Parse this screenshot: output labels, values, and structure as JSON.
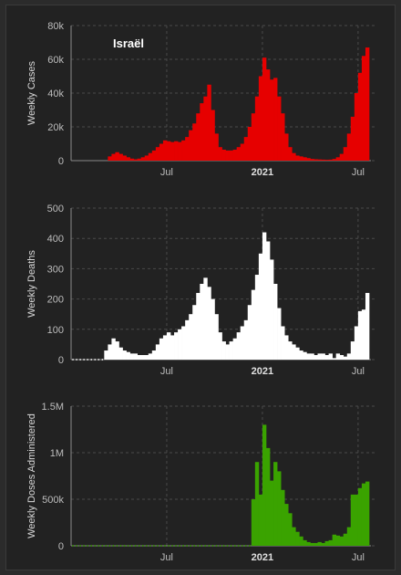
{
  "chart_data": [
    {
      "type": "bar",
      "title": "Israël",
      "ylabel": "Weekly Cases",
      "color": "#e60000",
      "ylim": [
        0,
        80000
      ],
      "yticks": [
        0,
        20000,
        40000,
        60000,
        80000
      ],
      "ytick_labels": [
        "0",
        "20k",
        "40k",
        "60k",
        "80k"
      ],
      "xticks": [
        {
          "week": 26,
          "label": "Jul",
          "bold": false
        },
        {
          "week": 52,
          "label": "2021",
          "bold": true
        },
        {
          "week": 78,
          "label": "Jul",
          "bold": false
        }
      ],
      "values": [
        0,
        0,
        0,
        0,
        0,
        0,
        0,
        0,
        0,
        0,
        2500,
        4000,
        5000,
        4000,
        3000,
        2000,
        1200,
        800,
        1200,
        2000,
        3000,
        4500,
        6000,
        8000,
        10000,
        12000,
        11500,
        11000,
        11500,
        11000,
        12000,
        14000,
        18000,
        22000,
        28000,
        34000,
        38000,
        45000,
        30000,
        16000,
        8000,
        6500,
        6000,
        6000,
        6500,
        8000,
        10000,
        14000,
        20000,
        28000,
        38000,
        50000,
        61000,
        54000,
        48000,
        49000,
        38000,
        28000,
        16000,
        8000,
        4500,
        3000,
        2500,
        2000,
        1500,
        1000,
        800,
        700,
        600,
        500,
        600,
        1000,
        2000,
        4000,
        8000,
        16000,
        26000,
        40000,
        52000,
        62000,
        67000
      ]
    },
    {
      "type": "bar",
      "ylabel": "Weekly Deaths",
      "color": "#ffffff",
      "ylim": [
        0,
        500
      ],
      "yticks": [
        0,
        100,
        200,
        300,
        400,
        500
      ],
      "ytick_labels": [
        "0",
        "100",
        "200",
        "300",
        "400",
        "500"
      ],
      "xticks": [
        {
          "week": 26,
          "label": "Jul",
          "bold": false
        },
        {
          "week": 52,
          "label": "2021",
          "bold": true
        },
        {
          "week": 78,
          "label": "Jul",
          "bold": false
        }
      ],
      "values": [
        0,
        0,
        0,
        0,
        0,
        0,
        0,
        0,
        0,
        30,
        50,
        70,
        60,
        40,
        30,
        25,
        20,
        20,
        15,
        15,
        15,
        20,
        30,
        50,
        70,
        80,
        90,
        80,
        90,
        100,
        110,
        130,
        150,
        180,
        220,
        250,
        270,
        240,
        200,
        150,
        90,
        60,
        50,
        60,
        70,
        90,
        110,
        130,
        180,
        230,
        280,
        350,
        420,
        390,
        330,
        250,
        170,
        110,
        80,
        60,
        50,
        40,
        30,
        25,
        20,
        20,
        15,
        20,
        20,
        15,
        20,
        5,
        20,
        15,
        10,
        20,
        60,
        110,
        160,
        165,
        220
      ]
    },
    {
      "type": "bar",
      "ylabel": "Weekly Doses Administered",
      "color": "#3aa300",
      "ylim": [
        0,
        1500000
      ],
      "yticks": [
        0,
        500000,
        1000000,
        1500000
      ],
      "ytick_labels": [
        "0",
        "500k",
        "1M",
        "1.5M"
      ],
      "xticks": [
        {
          "week": 26,
          "label": "Jul",
          "bold": false
        },
        {
          "week": 52,
          "label": "2021",
          "bold": true
        },
        {
          "week": 78,
          "label": "Jul",
          "bold": false
        }
      ],
      "values": [
        0,
        0,
        0,
        0,
        0,
        0,
        0,
        0,
        0,
        0,
        0,
        0,
        0,
        0,
        0,
        0,
        0,
        0,
        0,
        0,
        0,
        0,
        0,
        0,
        0,
        0,
        0,
        0,
        0,
        0,
        0,
        0,
        0,
        0,
        0,
        0,
        0,
        0,
        0,
        0,
        0,
        0,
        0,
        0,
        0,
        0,
        0,
        0,
        0,
        500000,
        900000,
        550000,
        1300000,
        1050000,
        700000,
        900000,
        800000,
        600000,
        450000,
        350000,
        200000,
        150000,
        100000,
        60000,
        40000,
        30000,
        30000,
        40000,
        30000,
        50000,
        60000,
        120000,
        110000,
        100000,
        130000,
        200000,
        550000,
        550000,
        620000,
        670000,
        690000
      ]
    }
  ]
}
